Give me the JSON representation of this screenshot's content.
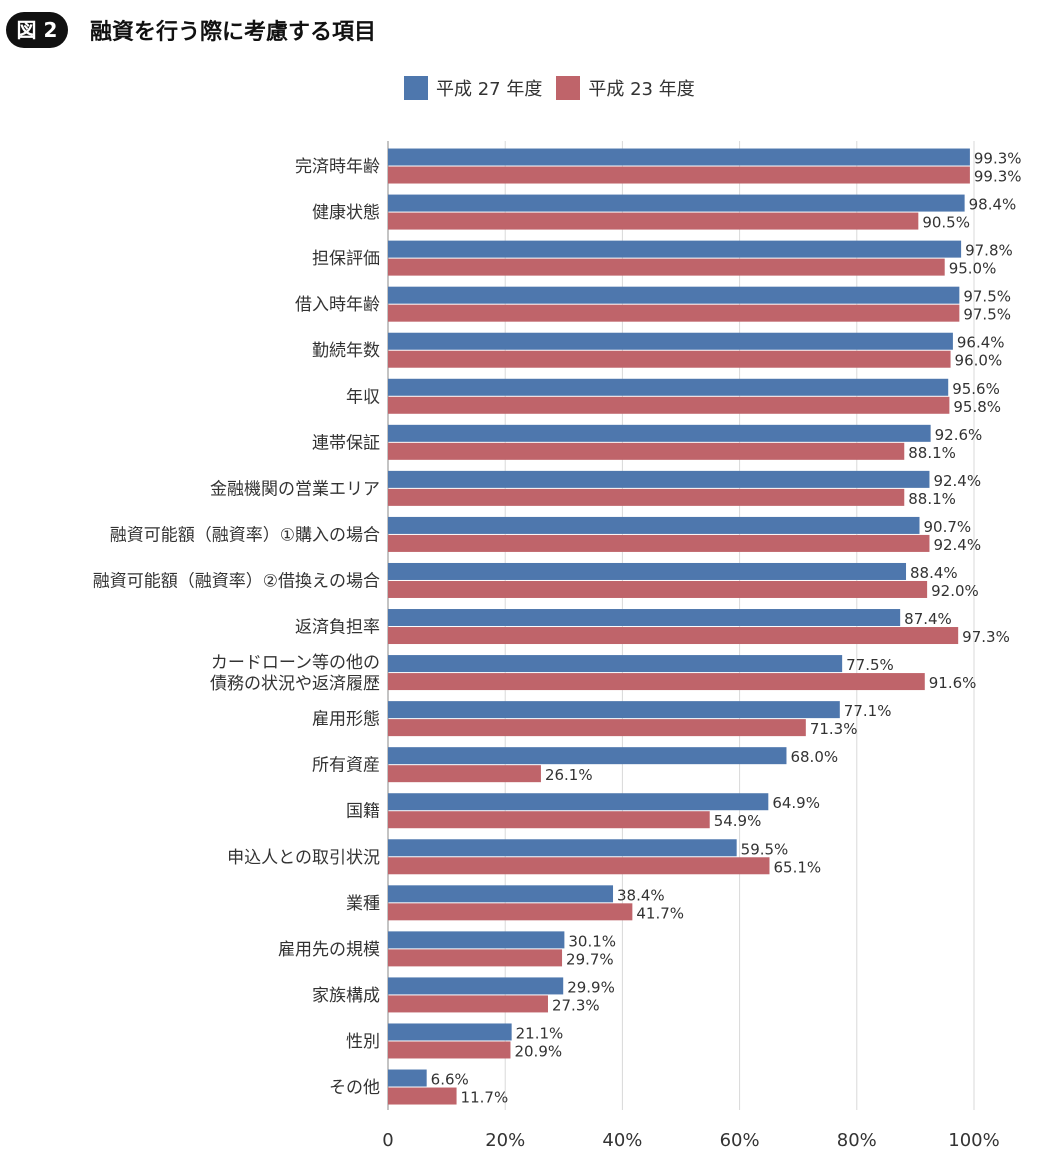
{
  "figure": {
    "badge": "図 2",
    "title": "融資を行う際に考慮する項目"
  },
  "colors": {
    "series_a": "#4E77AD",
    "series_b": "#BF646A",
    "grid": "#d9d9d9",
    "axis": "#888888"
  },
  "chart_data": {
    "type": "bar",
    "orientation": "horizontal",
    "xlim": [
      0,
      100
    ],
    "ticks": [
      "0",
      "20%",
      "40%",
      "60%",
      "80%",
      "100%"
    ],
    "legend_position": "top",
    "grid": true,
    "categories": [
      [
        "完済時年齢"
      ],
      [
        "健康状態"
      ],
      [
        "担保評価"
      ],
      [
        "借入時年齢"
      ],
      [
        "勤続年数"
      ],
      [
        "年収"
      ],
      [
        "連帯保証"
      ],
      [
        "金融機関の営業エリア"
      ],
      [
        "融資可能額（融資率）①購入の場合"
      ],
      [
        "融資可能額（融資率）②借換えの場合"
      ],
      [
        "返済負担率"
      ],
      [
        "カードローン等の他の",
        "債務の状況や返済履歴"
      ],
      [
        "雇用形態"
      ],
      [
        "所有資産"
      ],
      [
        "国籍"
      ],
      [
        "申込人との取引状況"
      ],
      [
        "業種"
      ],
      [
        "雇用先の規模"
      ],
      [
        "家族構成"
      ],
      [
        "性別"
      ],
      [
        "その他"
      ]
    ],
    "series": [
      {
        "name": "平成 27 年度",
        "values": [
          99.3,
          98.4,
          97.8,
          97.5,
          96.4,
          95.6,
          92.6,
          92.4,
          90.7,
          88.4,
          87.4,
          77.5,
          77.1,
          68.0,
          64.9,
          59.5,
          38.4,
          30.1,
          29.9,
          21.1,
          6.6
        ],
        "labels": [
          "99.3%",
          "98.4%",
          "97.8%",
          "97.5%",
          "96.4%",
          "95.6%",
          "92.6%",
          "92.4%",
          "90.7%",
          "88.4%",
          "87.4%",
          "77.5%",
          "77.1%",
          "68.0%",
          "64.9%",
          "59.5%",
          "38.4%",
          "30.1%",
          "29.9%",
          "21.1%",
          "6.6%"
        ]
      },
      {
        "name": "平成 23 年度",
        "values": [
          99.3,
          90.5,
          95.0,
          97.5,
          96.0,
          95.8,
          88.1,
          88.1,
          92.4,
          92.0,
          97.3,
          91.6,
          71.3,
          26.1,
          54.9,
          65.1,
          41.7,
          29.7,
          27.3,
          20.9,
          11.7
        ],
        "labels": [
          "99.3%",
          "90.5%",
          "95.0%",
          "97.5%",
          "96.0%",
          "95.8%",
          "88.1%",
          "88.1%",
          "92.4%",
          "92.0%",
          "97.3%",
          "91.6%",
          "71.3%",
          "26.1%",
          "54.9%",
          "65.1%",
          "41.7%",
          "29.7%",
          "27.3%",
          "20.9%",
          "11.7%"
        ]
      }
    ]
  }
}
